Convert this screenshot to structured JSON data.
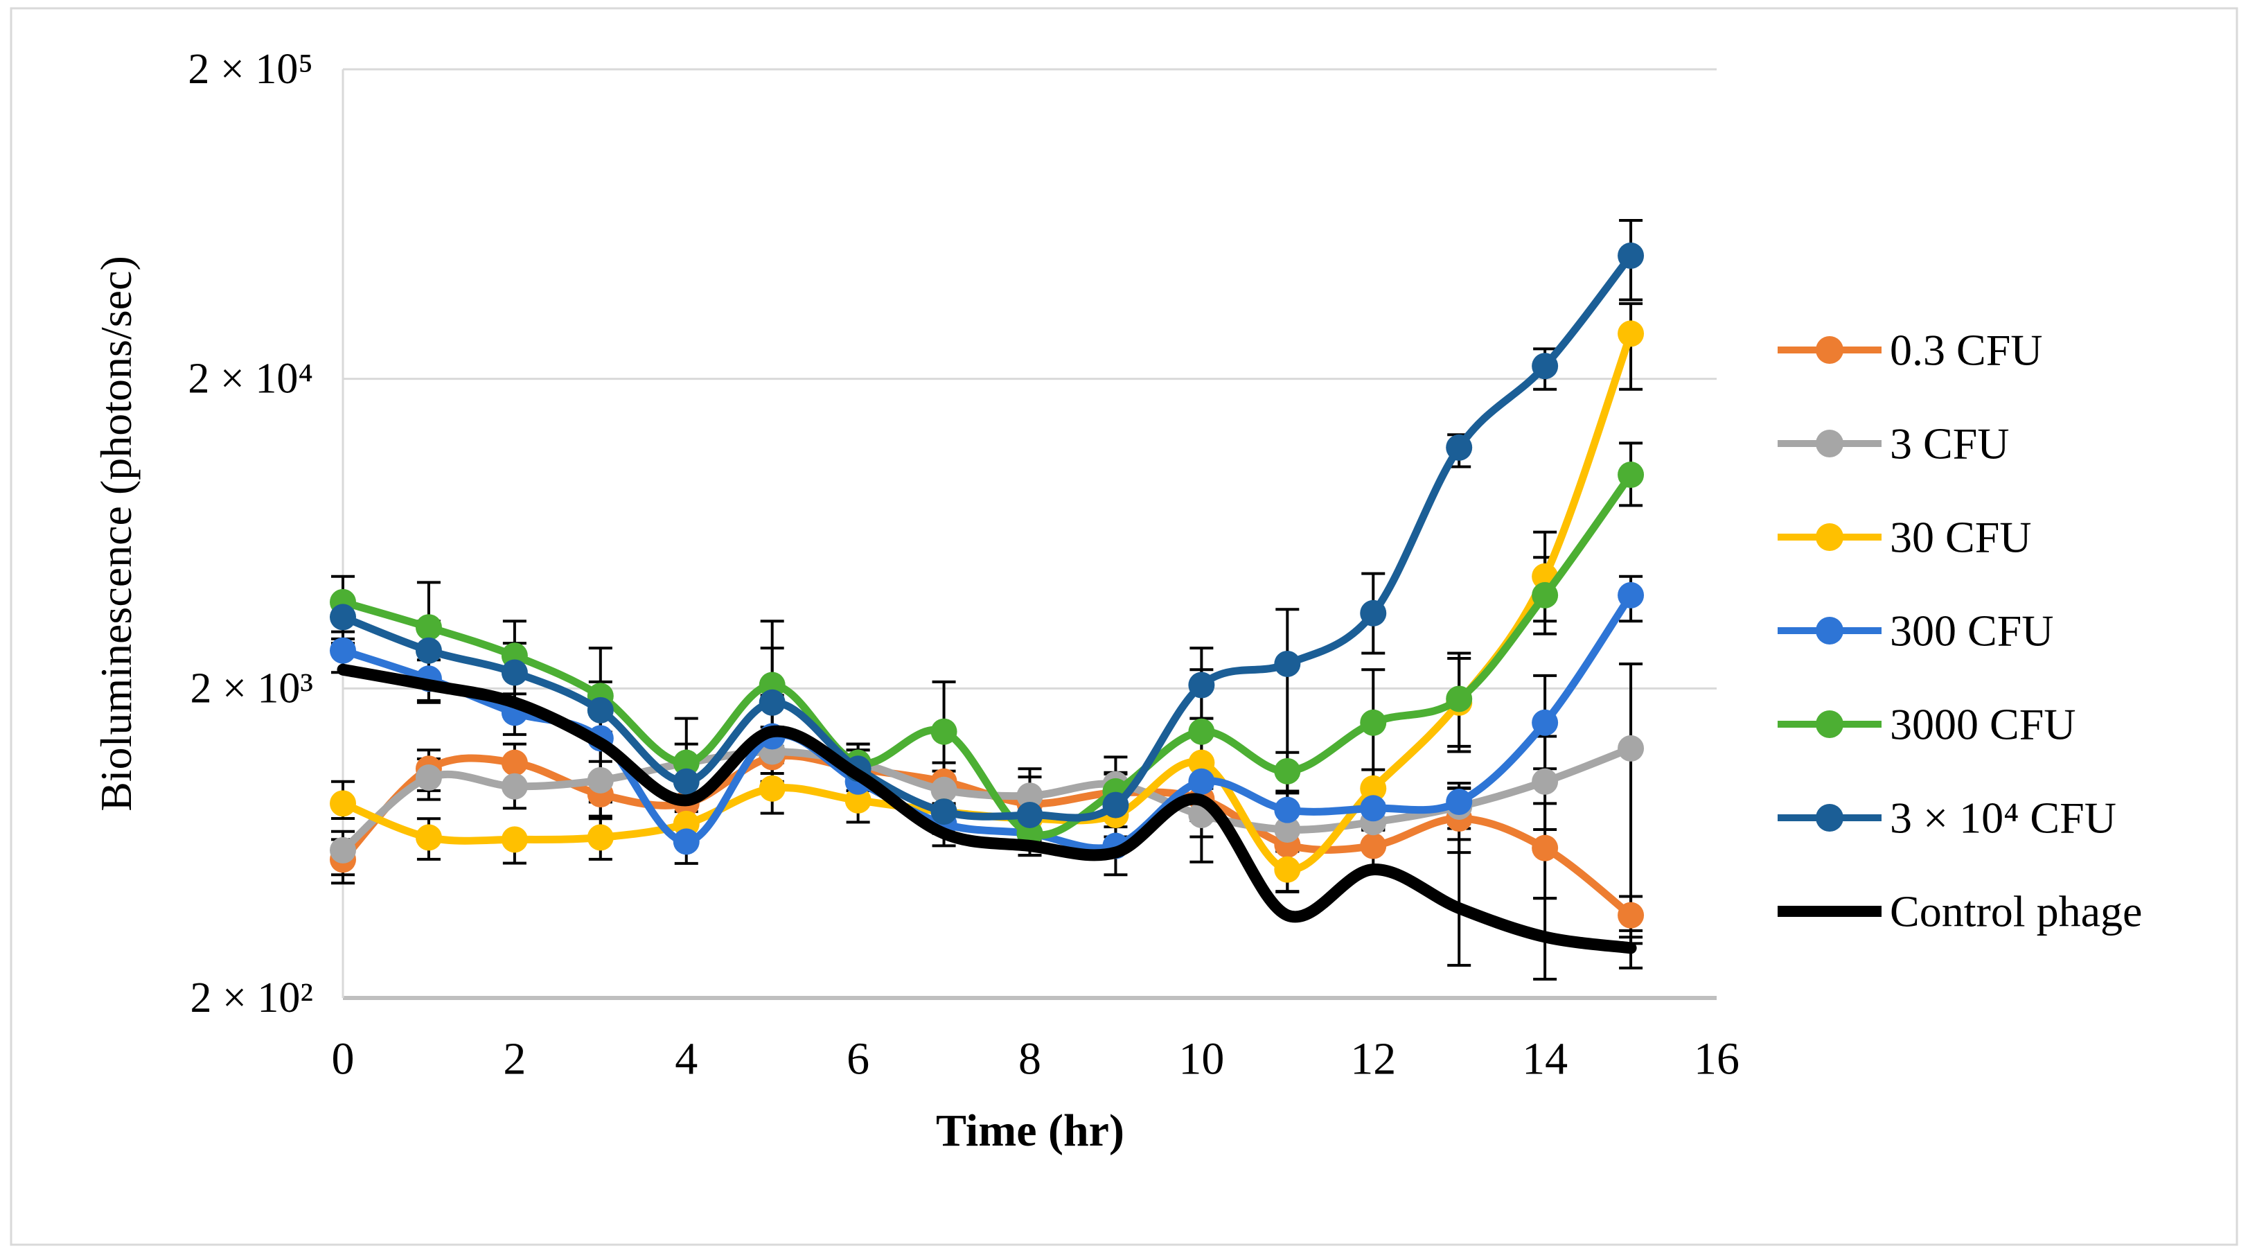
{
  "figure": {
    "background": "#FFFFFF",
    "border_color": "#D9D9D9",
    "text_color": "#000000",
    "gridline_color": "#D9D9D9",
    "axis_line_color": "#BFBFBF",
    "error_bar_color": "#000000"
  },
  "chart_data": {
    "type": "line",
    "title": "",
    "xlabel": "Time (hr)",
    "ylabel": "Bioluminescence (photons/sec)",
    "x": [
      0,
      1,
      2,
      3,
      4,
      5,
      6,
      7,
      8,
      9,
      10,
      11,
      12,
      13,
      14,
      15
    ],
    "xlim": [
      0,
      16
    ],
    "x_ticks": [
      0,
      2,
      4,
      6,
      8,
      10,
      12,
      14,
      16
    ],
    "y_scale": "log",
    "ylim": [
      200,
      200000
    ],
    "y_ticks": [
      {
        "label": "2 × 10⁵",
        "value": 200000
      },
      {
        "label": "2 × 10⁴",
        "value": 20000
      },
      {
        "label": "2 × 10³",
        "value": 2000
      },
      {
        "label": "2 × 10²",
        "value": 200
      }
    ],
    "grid": true,
    "legend_position": "right",
    "default_err_pct": 15,
    "series": [
      {
        "name": "0.3 CFU",
        "color": "#ED7D31",
        "marker": true,
        "smooth": true,
        "values": [
          560,
          1100,
          1150,
          910,
          850,
          1200,
          1100,
          1000,
          850,
          920,
          880,
          625,
          620,
          760,
          610,
          370
        ],
        "err": {
          "0": [
            470,
            650
          ],
          "5": [
            950,
            1500
          ],
          "8": [
            640,
            1100
          ],
          "13": [
            590,
            950
          ],
          "14": [
            420,
            850
          ]
        }
      },
      {
        "name": "3 CFU",
        "color": "#A6A6A6",
        "marker": true,
        "smooth": true,
        "values": [
          600,
          1030,
          965,
          1010,
          1150,
          1250,
          1150,
          940,
          900,
          980,
          780,
          700,
          740,
          830,
          1000,
          1280
        ],
        "err": {
          "0": [
            500,
            690
          ],
          "4": [
            800,
            1600
          ],
          "9": [
            790,
            1200
          ],
          "14": [
            700,
            1400
          ],
          "15": [
            300,
            2400
          ]
        }
      },
      {
        "name": "30 CFU",
        "color": "#FFC000",
        "marker": true,
        "smooth": true,
        "values": [
          850,
          660,
          650,
          660,
          730,
          950,
          870,
          800,
          760,
          780,
          1150,
          520,
          950,
          1800,
          4600,
          28000
        ],
        "err": {
          "0": [
            760,
            1000
          ],
          "2": [
            545,
            665
          ],
          "5": [
            790,
            1150
          ],
          "10": [
            550,
            1600
          ],
          "13": [
            1250,
            2500
          ],
          "14": [
            3300,
            6400
          ],
          "15": [
            18500,
            35000
          ]
        }
      },
      {
        "name": "300 CFU",
        "color": "#2E75D6",
        "marker": true,
        "smooth": true,
        "values": [
          2650,
          2150,
          1670,
          1380,
          640,
          1400,
          1000,
          730,
          680,
          620,
          1000,
          810,
          820,
          860,
          1550,
          4000
        ],
        "err": {
          "3": [
            650,
            2100
          ],
          "5": [
            1000,
            1900
          ],
          "9": [
            500,
            760
          ],
          "14": [
            1100,
            2200
          ],
          "15": [
            3300,
            4600
          ]
        }
      },
      {
        "name": "3000 CFU",
        "color": "#4CAF33",
        "marker": true,
        "smooth": true,
        "values": [
          3800,
          3150,
          2550,
          1890,
          1150,
          2050,
          1150,
          1450,
          680,
          930,
          1450,
          1080,
          1550,
          1850,
          4000,
          9800
        ],
        "err": {
          "0": [
            2800,
            4600
          ],
          "1": [
            1800,
            4400
          ],
          "2": [
            1700,
            3300
          ],
          "3": [
            1000,
            2700
          ],
          "5": [
            1300,
            3300
          ],
          "7": [
            1000,
            2100
          ],
          "10": [
            950,
            2300
          ],
          "12": [
            700,
            2300
          ],
          "13": [
            1300,
            2600
          ],
          "14": [
            3000,
            5300
          ],
          "15": [
            7800,
            12400
          ]
        }
      },
      {
        "name": "3 × 10⁴ CFU",
        "color": "#1B5E96",
        "marker": true,
        "smooth": true,
        "values": [
          3400,
          2650,
          2250,
          1700,
          1000,
          1800,
          1100,
          800,
          780,
          840,
          2050,
          2400,
          3500,
          12000,
          22000,
          50000
        ],
        "err": {
          "1": [
            2200,
            3300
          ],
          "2": [
            1800,
            2800
          ],
          "5": [
            1200,
            2700
          ],
          "10": [
            1600,
            2700
          ],
          "11": [
            440,
            3600
          ],
          "12": [
            2600,
            4700
          ],
          "13": [
            10400,
            13200
          ],
          "14": [
            18500,
            25000
          ],
          "15": [
            36000,
            65000
          ]
        }
      },
      {
        "name": "Control phage",
        "color": "#000000",
        "marker": false,
        "smooth": true,
        "thick": true,
        "auto_err": false,
        "values": [
          2300,
          2050,
          1800,
          1330,
          870,
          1450,
          1050,
          680,
          620,
          590,
          870,
          370,
          520,
          390,
          315,
          290
        ],
        "err": {
          "13": [
            255,
            650
          ],
          "14": [
            230,
            420
          ],
          "15": [
            250,
            330
          ]
        }
      }
    ]
  }
}
